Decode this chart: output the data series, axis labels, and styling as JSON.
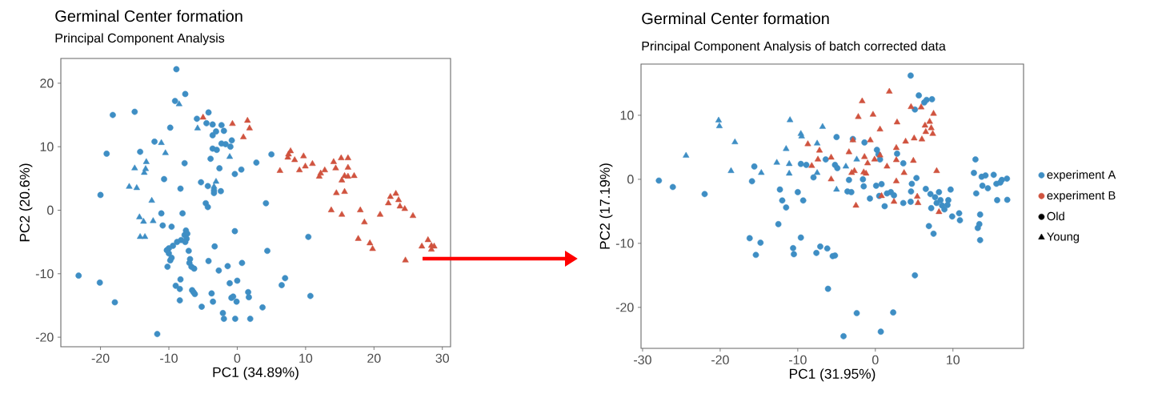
{
  "chart_data": [
    {
      "type": "scatter",
      "title": "Germinal Center formation",
      "subtitle": "Principal Component Analysis",
      "xlabel": "PC1 (34.89%)",
      "ylabel": "PC2 (20.6%)",
      "xlim": [
        -25.8,
        31.2
      ],
      "ylim": [
        -21.5,
        23.9
      ],
      "xticks": [
        -20,
        -10,
        0,
        10,
        20,
        30
      ],
      "yticks": [
        -20,
        -10,
        0,
        10,
        20
      ],
      "series": [
        {
          "color": "#3e8ec4",
          "marker": "circle",
          "x": [
            -8.9,
            -7.6,
            -9.1,
            -18.2,
            -15.0,
            -4.2,
            -5.9,
            -4.5,
            -3.6,
            -2.3,
            -1.95,
            -3.1,
            -3.6,
            -9.8,
            -12.1,
            -14.2,
            -19.1,
            -2.3,
            -1.7,
            -0.8,
            -1.0,
            -3.6,
            -3.0,
            -3.9,
            -7.7,
            -2.6,
            0.6,
            -0.35,
            -10.7,
            -8.3,
            -5.3,
            -4.3,
            -3.4,
            -3.4,
            -2.4,
            -20.0,
            -4.6,
            -4.3,
            -11.1,
            -8.0,
            -10.9,
            -9.6,
            -0.35,
            -7.5,
            -7.7,
            -8.2,
            -8.8,
            -9.4,
            -10.0,
            -10.3,
            -10.0,
            -9.6,
            -9.8,
            -10.2,
            -7.3,
            -7.4,
            -7.6,
            -7.1,
            -6.9,
            -7.0,
            -6.7,
            -6.3,
            -3.3,
            -4.2,
            0.7,
            -2.7,
            -1.4,
            -1.1,
            0.0,
            -8.3,
            -9.0,
            -8.4,
            -8.4,
            -6.6,
            -6.4,
            -6.2,
            -5.2,
            -3.75,
            -3.55,
            -2.1,
            -1.95,
            -0.85,
            -0.6,
            -0.1,
            -0.3,
            1.6,
            1.7,
            1.9,
            -23.2,
            -20.1,
            -17.9,
            -11.7,
            5.0,
            2.8,
            4.2,
            10.4,
            4.4,
            7.0,
            6.5,
            10.7,
            3.7
          ],
          "values": [
            22.2,
            18.3,
            17.2,
            15.0,
            15.5,
            15.4,
            14.4,
            13.7,
            13.5,
            13.4,
            12.5,
            12.4,
            11.8,
            13.0,
            10.8,
            9.2,
            8.9,
            10.5,
            10.4,
            11.0,
            10.0,
            9.7,
            9.5,
            8.1,
            7.4,
            6.6,
            6.4,
            5.7,
            4.9,
            3.4,
            4.4,
            3.8,
            3.1,
            2.7,
            3.0,
            2.4,
            1.1,
            0.5,
            -0.5,
            -0.5,
            -2.4,
            -2.6,
            -3.3,
            -3.2,
            -3.9,
            -4.7,
            -5.0,
            -5.6,
            -6.0,
            -6.3,
            -6.8,
            -7.5,
            -7.9,
            -8.9,
            -3.7,
            -4.5,
            -5.0,
            -6.4,
            -7.7,
            -8.3,
            -8.9,
            -9.2,
            -5.7,
            -8.0,
            -8.3,
            -9.5,
            -8.8,
            -11.5,
            -11.1,
            -10.9,
            -11.9,
            -12.4,
            -14.2,
            -12.6,
            -12.9,
            -13.2,
            -15.2,
            -13.1,
            -14.4,
            -16.2,
            -17.1,
            -13.8,
            -13.6,
            -14.4,
            -17.1,
            -12.9,
            -13.7,
            -17.1,
            -10.3,
            -11.4,
            -14.5,
            -19.5,
            8.8,
            7.5,
            1.1,
            -4.2,
            -6.4,
            -10.7,
            -11.8,
            -13.5,
            -15.3
          ]
        },
        {
          "color": "#3e8ec4",
          "marker": "triangle",
          "x": [
            -8.5,
            -5.8,
            -11.1,
            -10.5,
            -13.3,
            -15.0,
            -13.6,
            -13.4,
            -15.8,
            -14.7,
            -12.5,
            -14.3,
            -13.7,
            -12.3,
            -14.2,
            -13.5,
            -1.1,
            -3.1,
            -3.4
          ],
          "values": [
            16.7,
            12.9,
            10.6,
            9.0,
            7.6,
            6.6,
            5.9,
            6.5,
            3.7,
            3.5,
            1.5,
            -1.1,
            -1.8,
            -1.7,
            -4.2,
            -4.2,
            8.4,
            4.5,
            3.7
          ]
        },
        {
          "color": "#d0533f",
          "marker": "triangle",
          "x": [
            -5.0,
            -0.7,
            1.5,
            1.8,
            0.9,
            7.8,
            7.5,
            7.4,
            8.4,
            9.7,
            9.96,
            11.0,
            9.1,
            6.25,
            14.1,
            15.2,
            16.2,
            14.4,
            16.2,
            12.8,
            12.2,
            12.0,
            15.7,
            16.2,
            17.1,
            15.3,
            14.5,
            15.7,
            13.75,
            15.3,
            18.0,
            18.6,
            20.9,
            17.7,
            19.4,
            19.8,
            24.6,
            22.1,
            22.4,
            23.2,
            23.6,
            23.8,
            24.5,
            25.7,
            27.0,
            27.9,
            28.4,
            28.4,
            28.8
          ],
          "values": [
            14.6,
            13.6,
            14.1,
            12.9,
            11.5,
            9.3,
            8.8,
            8.3,
            7.9,
            8.5,
            6.9,
            7.3,
            6.3,
            6.2,
            7.6,
            8.2,
            8.2,
            6.6,
            6.7,
            6.3,
            5.8,
            5.3,
            5.4,
            5.3,
            5.4,
            4.7,
            2.7,
            2.9,
            0.0,
            -0.7,
            0.0,
            -1.9,
            -0.7,
            -4.5,
            -5.2,
            -6.1,
            -7.9,
            1.1,
            2.1,
            2.6,
            1.6,
            0.6,
            0.2,
            -0.9,
            -5.7,
            -4.7,
            -5.6,
            -6.2,
            -5.7
          ]
        }
      ]
    },
    {
      "type": "scatter",
      "title": "Germinal Center formation",
      "subtitle": "Principal Component Analysis of batch corrected data",
      "xlabel": "PC1 (31.95%)",
      "ylabel": "PC2 (17.19%)",
      "xlim": [
        -30.2,
        19.1
      ],
      "ylim": [
        -26.4,
        18.0
      ],
      "xticks": [
        -30,
        -20,
        -10,
        0,
        10
      ],
      "yticks": [
        -20,
        -10,
        0,
        10
      ],
      "legend": "right",
      "series": [
        {
          "color": "#3e8ec4",
          "marker": "circle",
          "x": [
            -27.9,
            -26.1,
            -22.0,
            -15.6,
            -15.9,
            -12.3,
            -12.0,
            -11.5,
            -12.5,
            -10.0,
            -9.3,
            -9.6,
            -8.9,
            -6.4,
            -7.97,
            -16.2,
            -14.8,
            -15.4,
            -10.6,
            -10.5,
            -9.6,
            -7.6,
            -7.1,
            -6.2,
            -5.5,
            -6.1,
            -5.2,
            4.55,
            5.6,
            6.3,
            6.6,
            7.3,
            5.1,
            -5.0,
            -2.9,
            -1.4,
            0.2,
            0.6,
            2.8,
            3.6,
            -5.2,
            -4.9,
            -3.4,
            -3.6,
            -3.1,
            -1.6,
            -1.5,
            -0.7,
            0.1,
            0.8,
            0.5,
            1.2,
            1.5,
            2.0,
            2.4,
            3.6,
            4.55,
            4.7,
            5.3,
            4.6,
            6.5,
            7.1,
            7.2,
            7.7,
            7.9,
            8.2,
            8.4,
            8.6,
            8.9,
            9.3,
            9.7,
            9.4,
            9.9,
            10.8,
            10.9,
            6.9,
            7.5,
            12.9,
            12.7,
            13.0,
            13.7,
            14.2,
            13.8,
            14.5,
            15.25,
            15.6,
            16.1,
            16.3,
            16.96,
            15.7,
            17.0,
            13.5,
            13.2,
            13.4,
            13.5,
            5.1,
            -2.4,
            2.3,
            0.7,
            -4.1,
            0.4
          ],
          "values": [
            -0.2,
            -1.2,
            -2.3,
            2.0,
            -0.3,
            -1.6,
            -3.3,
            -4.4,
            -7.0,
            -2.0,
            -3.3,
            2.4,
            2.25,
            3.1,
            0.3,
            -9.2,
            -9.9,
            -11.8,
            -10.75,
            -11.7,
            -9.1,
            -11.5,
            -10.5,
            -10.8,
            -12.0,
            -17.1,
            -11.9,
            16.2,
            13.1,
            12.0,
            12.4,
            12.5,
            10.9,
            6.6,
            6.3,
            5.75,
            4.6,
            3.1,
            4.0,
            2.5,
            2.25,
            1.75,
            -0.1,
            -1.9,
            -2.0,
            0.0,
            -1.1,
            -3.0,
            -1.0,
            -0.75,
            -2.6,
            -4.2,
            -2.2,
            -2.0,
            -2.5,
            -3.7,
            -3.5,
            -0.7,
            0.2,
            -1.9,
            -1.5,
            -2.3,
            -4.5,
            -2.8,
            -3.7,
            -2.0,
            -3.25,
            -4.1,
            -4.7,
            -4.0,
            -1.6,
            -3.25,
            -5.8,
            -5.3,
            -6.4,
            -7.3,
            -8.5,
            3.1,
            1.0,
            -2.2,
            0.4,
            0.6,
            -1.0,
            -1.4,
            0.7,
            -0.7,
            -0.5,
            -0.1,
            0.1,
            -3.25,
            -3.2,
            -5.5,
            -7.6,
            -7.0,
            -9.5,
            -15.0,
            -20.9,
            -20.8,
            -23.8,
            -24.5,
            3.9
          ]
        },
        {
          "color": "#3e8ec4",
          "marker": "triangle",
          "x": [
            -20.2,
            -20.1,
            -24.4,
            -18.1,
            -18.6,
            -14.7,
            -12.7,
            -11.0,
            -11.5,
            -11.1,
            -11.1,
            -9.6,
            -9.5,
            -6.8,
            -7.5,
            -7.5,
            -3.8,
            -2.4,
            -5.0
          ],
          "values": [
            9.2,
            8.3,
            3.7,
            5.8,
            1.3,
            1.0,
            2.6,
            9.25,
            4.75,
            2.4,
            0.9,
            7.1,
            6.7,
            8.2,
            5.6,
            1.0,
            2.0,
            3.1,
            -1.6
          ]
        },
        {
          "color": "#d0533f",
          "marker": "triangle",
          "x": [
            -8.7,
            -7.2,
            -7.4,
            -8.2,
            -5.7,
            -5.7,
            1.8,
            -1.7,
            -2.2,
            -0.3,
            2.8,
            0.6,
            4.6,
            5.9,
            7.5,
            6.4,
            7.0,
            7.2,
            6.5,
            7.4,
            6.0,
            5.0,
            3.9,
            2.7,
            -0.65,
            -2.9,
            -3.4,
            -1.4,
            0.6,
            -0.1,
            -1.0,
            1.5,
            2.7,
            4.9,
            3.7,
            2.7,
            -2.7,
            -3.05,
            -1.5,
            -1.2,
            7.9,
            -2.5,
            0.8,
            2.4,
            5.4,
            5.5,
            8.2
          ],
          "values": [
            5.5,
            4.5,
            3.1,
            2.1,
            3.4,
            0.0,
            13.7,
            12.2,
            9.75,
            10.1,
            8.9,
            7.8,
            11.3,
            11.25,
            10.25,
            8.4,
            9.0,
            8.0,
            7.4,
            7.1,
            6.25,
            6.4,
            5.9,
            4.9,
            6.1,
            6.1,
            4.25,
            3.5,
            3.75,
            3.1,
            2.5,
            2.0,
            3.0,
            2.9,
            1.0,
            -0.3,
            1.3,
            1.0,
            1.1,
            0.9,
            1.3,
            -4.1,
            -2.6,
            -3.5,
            -2.7,
            -3.7,
            -5.1
          ]
        },
        {
          "name": "experiment A",
          "color": "#3e8ec4",
          "marker": "circle"
        },
        {
          "name": "experiment B",
          "color": "#d0533f",
          "marker": "circle"
        },
        {
          "name": "Old",
          "color": "#000000",
          "marker": "circle"
        },
        {
          "name": "Young",
          "color": "#000000",
          "marker": "triangle"
        }
      ]
    }
  ]
}
